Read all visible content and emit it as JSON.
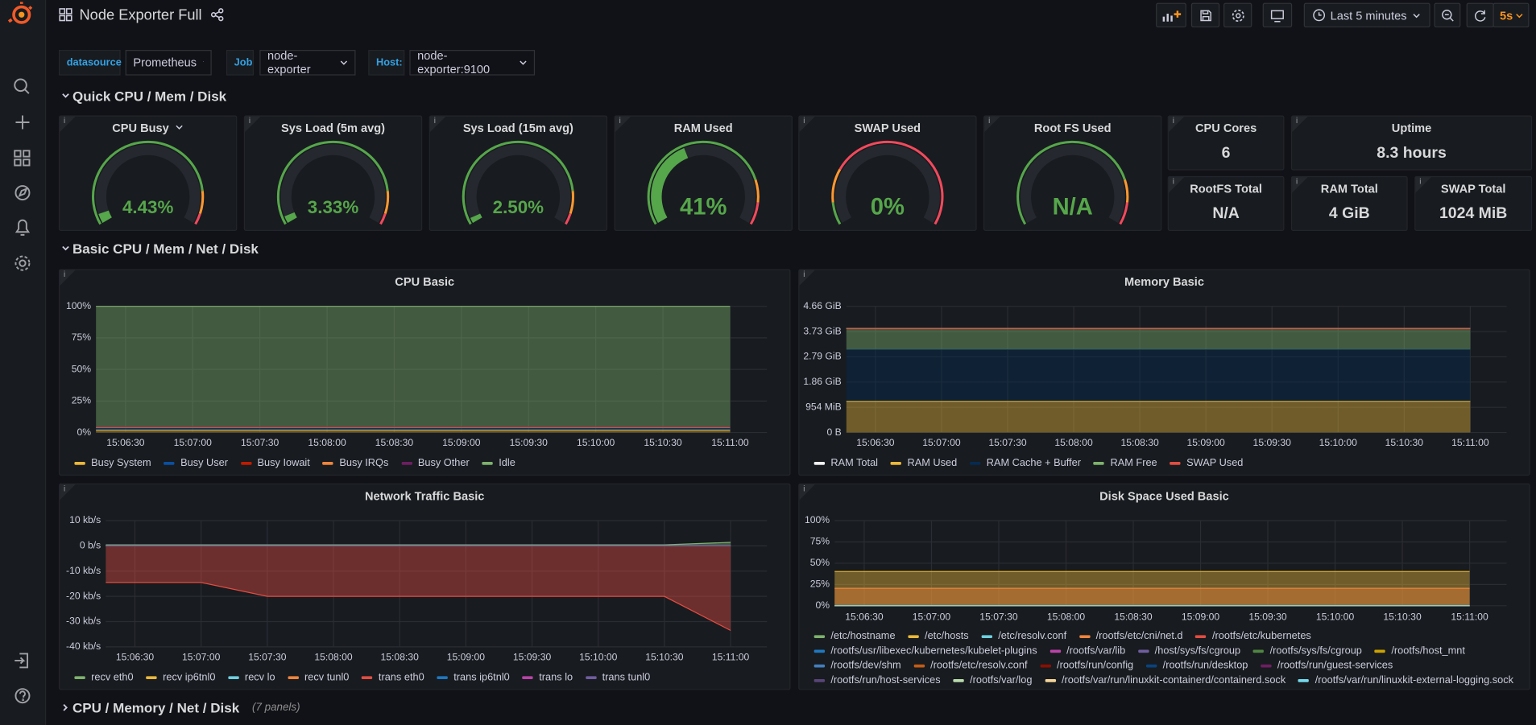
{
  "header": {
    "title": "Node Exporter Full",
    "time_range": "Last 5 minutes",
    "refresh": "5s"
  },
  "variables": [
    {
      "label": "datasource",
      "value": "Prometheus"
    },
    {
      "label": "Job",
      "value": "node-exporter"
    },
    {
      "label": "Host:",
      "value": "node-exporter:9100"
    }
  ],
  "rows": [
    {
      "title": "Quick CPU / Mem / Disk"
    },
    {
      "title": "Basic CPU / Mem / Net / Disk"
    },
    {
      "title": "CPU / Memory / Net / Disk",
      "note": "(7 panels)"
    }
  ],
  "gauges": [
    {
      "title": "CPU Busy",
      "value": 4.43,
      "value_label": "4.43%",
      "max": 100,
      "thresholds": [
        {
          "value": 0,
          "color": "#56A64B"
        },
        {
          "value": 85,
          "color": "#FF9830"
        },
        {
          "value": 95,
          "color": "#F2495C"
        }
      ]
    },
    {
      "title": "Sys Load (5m avg)",
      "value": 3.33,
      "value_label": "3.33%",
      "max": 100,
      "thresholds": [
        {
          "value": 0,
          "color": "#56A64B"
        },
        {
          "value": 85,
          "color": "#FF9830"
        },
        {
          "value": 95,
          "color": "#F2495C"
        }
      ]
    },
    {
      "title": "Sys Load (15m avg)",
      "value": 2.5,
      "value_label": "2.50%",
      "max": 100,
      "thresholds": [
        {
          "value": 0,
          "color": "#56A64B"
        },
        {
          "value": 85,
          "color": "#FF9830"
        },
        {
          "value": 95,
          "color": "#F2495C"
        }
      ]
    },
    {
      "title": "RAM Used",
      "value": 41,
      "value_label": "41%",
      "max": 100,
      "thresholds": [
        {
          "value": 0,
          "color": "#56A64B"
        },
        {
          "value": 80,
          "color": "#FF9830"
        },
        {
          "value": 90,
          "color": "#F2495C"
        }
      ]
    },
    {
      "title": "SWAP Used",
      "value": 0,
      "value_label": "0%",
      "max": 100,
      "thresholds": [
        {
          "value": 0,
          "color": "#56A64B"
        },
        {
          "value": 10,
          "color": "#FF9830"
        },
        {
          "value": 25,
          "color": "#F2495C"
        }
      ]
    },
    {
      "title": "Root FS Used",
      "value": null,
      "value_label": "N/A",
      "max": 100,
      "thresholds": [
        {
          "value": 0,
          "color": "#56A64B"
        },
        {
          "value": 80,
          "color": "#FF9830"
        },
        {
          "value": 90,
          "color": "#F2495C"
        }
      ]
    }
  ],
  "stats": [
    {
      "title": "CPU Cores",
      "value": "6"
    },
    {
      "title": "Uptime",
      "value": "8.3 hours"
    },
    {
      "title": "RootFS Total",
      "value": "N/A"
    },
    {
      "title": "RAM Total",
      "value": "4 GiB"
    },
    {
      "title": "SWAP Total",
      "value": "1024 MiB"
    }
  ],
  "charts": [
    {
      "type": "timeseries",
      "title": "CPU Basic",
      "stacked": true,
      "x": [
        null,
        "15:06:30",
        "15:07:00",
        "15:07:30",
        "15:08:00",
        "15:08:30",
        "15:09:00",
        "15:09:30",
        "15:10:00",
        "15:10:30",
        "15:11:00"
      ],
      "ylim": [
        0,
        100
      ],
      "yticks": [
        {
          "value": 0,
          "label": "0%"
        },
        {
          "value": 25,
          "label": "25%"
        },
        {
          "value": 50,
          "label": "50%"
        },
        {
          "value": 75,
          "label": "75%"
        },
        {
          "value": 100,
          "label": "100%"
        }
      ],
      "series": [
        {
          "name": "Busy System",
          "color": "#EAB839",
          "values": [
            2,
            2,
            2,
            2,
            2,
            2,
            2,
            2,
            2,
            2,
            2
          ]
        },
        {
          "name": "Busy User",
          "color": "#0A50A1",
          "values": [
            2,
            2,
            2,
            2,
            2,
            2,
            2,
            2,
            2,
            2,
            2
          ]
        },
        {
          "name": "Busy Iowait",
          "color": "#BF1B00",
          "values": [
            0,
            0,
            0,
            0,
            0,
            0,
            0,
            0,
            0,
            0,
            0
          ]
        },
        {
          "name": "Busy IRQs",
          "color": "#EF843C",
          "values": [
            0,
            0,
            0,
            0,
            0,
            0,
            0,
            0,
            0,
            0,
            0
          ]
        },
        {
          "name": "Busy Other",
          "color": "#6D1F62",
          "values": [
            0.4,
            0.4,
            0.4,
            0.4,
            0.4,
            0.4,
            0.4,
            0.4,
            0.4,
            0.4,
            0.4
          ]
        },
        {
          "name": "Idle",
          "color": "#7EB26D",
          "values": [
            95.6,
            95.6,
            95.6,
            95.6,
            95.6,
            95.6,
            95.6,
            95.6,
            95.6,
            95.6,
            95.6
          ]
        }
      ]
    },
    {
      "type": "timeseries",
      "title": "Memory Basic",
      "stacked": true,
      "x": [
        null,
        "15:06:30",
        "15:07:00",
        "15:07:30",
        "15:08:00",
        "15:08:30",
        "15:09:00",
        "15:09:30",
        "15:10:00",
        "15:10:30",
        "15:11:00"
      ],
      "ylim": [
        0,
        5000000000
      ],
      "yticks": [
        {
          "value": 0,
          "label": "0 B"
        },
        {
          "value": 1000000000,
          "label": "954 MiB"
        },
        {
          "value": 2000000000,
          "label": "1.86 GiB"
        },
        {
          "value": 3000000000,
          "label": "2.79 GiB"
        },
        {
          "value": 4000000000,
          "label": "3.73 GiB"
        },
        {
          "value": 5000000000,
          "label": "4.66 GiB"
        }
      ],
      "series": [
        {
          "name": "RAM Total",
          "color": "#F2F2F2",
          "stack": false,
          "values": [
            4120000000,
            4120000000,
            4120000000,
            4120000000,
            4120000000,
            4120000000,
            4120000000,
            4120000000,
            4120000000,
            4120000000,
            4120000000
          ]
        },
        {
          "name": "RAM Used",
          "color": "#EAB839",
          "values": [
            1240000000,
            1240000000,
            1240000000,
            1240000000,
            1240000000,
            1240000000,
            1240000000,
            1240000000,
            1240000000,
            1240000000,
            1240000000
          ]
        },
        {
          "name": "RAM Cache + Buffer",
          "color": "#052B51",
          "values": [
            2050000000,
            2050000000,
            2050000000,
            2050000000,
            2050000000,
            2050000000,
            2050000000,
            2050000000,
            2050000000,
            2050000000,
            2050000000
          ]
        },
        {
          "name": "RAM Free",
          "color": "#7EB26D",
          "values": [
            830000000,
            830000000,
            830000000,
            830000000,
            830000000,
            830000000,
            830000000,
            830000000,
            830000000,
            830000000,
            830000000
          ]
        },
        {
          "name": "SWAP Used",
          "color": "#E24D42",
          "values": [
            0,
            0,
            0,
            0,
            0,
            0,
            0,
            0,
            0,
            0,
            0
          ]
        }
      ]
    },
    {
      "type": "timeseries",
      "title": "Network Traffic Basic",
      "stacked": false,
      "x": [
        null,
        "15:06:30",
        "15:07:00",
        "15:07:30",
        "15:08:00",
        "15:08:30",
        "15:09:00",
        "15:09:30",
        "15:10:00",
        "15:10:30",
        "15:11:00"
      ],
      "ylim": [
        -40000,
        10000
      ],
      "yticks": [
        {
          "value": 10000,
          "label": "10 kb/s"
        },
        {
          "value": 0,
          "label": "0 b/s"
        },
        {
          "value": -10000,
          "label": "-10 kb/s"
        },
        {
          "value": -20000,
          "label": "-20 kb/s"
        },
        {
          "value": -30000,
          "label": "-30 kb/s"
        },
        {
          "value": -40000,
          "label": "-40 kb/s"
        }
      ],
      "series": [
        {
          "name": "recv eth0",
          "color": "#7EB26D",
          "values": [
            400,
            400,
            400,
            400,
            400,
            400,
            400,
            400,
            400,
            400,
            1400
          ]
        },
        {
          "name": "recv ip6tnl0",
          "color": "#EAB839",
          "values": [
            0,
            0,
            0,
            0,
            0,
            0,
            0,
            0,
            0,
            0,
            0
          ]
        },
        {
          "name": "recv lo",
          "color": "#6ED0E0",
          "values": [
            0,
            0,
            0,
            0,
            0,
            0,
            0,
            0,
            0,
            0,
            0
          ]
        },
        {
          "name": "recv tunl0",
          "color": "#EF843C",
          "values": [
            0,
            0,
            0,
            0,
            0,
            0,
            0,
            0,
            0,
            0,
            0
          ]
        },
        {
          "name": "trans eth0",
          "color": "#E24D42",
          "values": [
            -14500,
            -14500,
            -14500,
            -20000,
            -20000,
            -20000,
            -20000,
            -20000,
            -20000,
            -20000,
            -33500
          ]
        },
        {
          "name": "trans ip6tnl0",
          "color": "#1F78C1",
          "values": [
            0,
            0,
            0,
            0,
            0,
            0,
            0,
            0,
            0,
            0,
            0
          ]
        },
        {
          "name": "trans lo",
          "color": "#BA43A9",
          "values": [
            0,
            0,
            0,
            0,
            0,
            0,
            0,
            0,
            0,
            0,
            0
          ]
        },
        {
          "name": "trans tunl0",
          "color": "#705DA0",
          "values": [
            0,
            0,
            0,
            0,
            0,
            0,
            0,
            0,
            0,
            0,
            0
          ]
        }
      ]
    },
    {
      "type": "timeseries",
      "title": "Disk Space Used Basic",
      "stacked": false,
      "x": [
        null,
        "15:06:30",
        "15:07:00",
        "15:07:30",
        "15:08:00",
        "15:08:30",
        "15:09:00",
        "15:09:30",
        "15:10:00",
        "15:10:30",
        "15:11:00"
      ],
      "ylim": [
        0,
        100
      ],
      "yticks": [
        {
          "value": 0,
          "label": "0%"
        },
        {
          "value": 25,
          "label": "25%"
        },
        {
          "value": 50,
          "label": "50%"
        },
        {
          "value": 75,
          "label": "75%"
        },
        {
          "value": 100,
          "label": "100%"
        }
      ],
      "series": [
        {
          "name": "/etc/hostname",
          "color": "#7EB26D",
          "values": [
            0,
            0,
            0,
            0,
            0,
            0,
            0,
            0,
            0,
            0,
            0
          ]
        },
        {
          "name": "/etc/hosts",
          "color": "#EAB839",
          "values": [
            40.3,
            40.3,
            40.3,
            40.3,
            40.3,
            40.3,
            40.3,
            40.3,
            40.3,
            40.3,
            40.3
          ]
        },
        {
          "name": "/etc/resolv.conf",
          "color": "#6ED0E0",
          "values": [
            0,
            0,
            0,
            0,
            0,
            0,
            0,
            0,
            0,
            0,
            0
          ]
        },
        {
          "name": "/rootfs/etc/cni/net.d",
          "color": "#EF843C",
          "values": [
            20.5,
            20.5,
            20.5,
            20.5,
            20.5,
            20.5,
            20.5,
            20.5,
            20.5,
            20.5,
            20.5
          ]
        },
        {
          "name": "/rootfs/etc/kubernetes",
          "color": "#E24D42",
          "values": [
            0,
            0,
            0,
            0,
            0,
            0,
            0,
            0,
            0,
            0,
            0
          ]
        },
        {
          "name": "/rootfs/usr/libexec/kubernetes/kubelet-plugins",
          "color": "#1F78C1",
          "values": [
            0,
            0,
            0,
            0,
            0,
            0,
            0,
            0,
            0,
            0,
            0
          ]
        },
        {
          "name": "/rootfs/var/lib",
          "color": "#BA43A9",
          "values": [
            0,
            0,
            0,
            0,
            0,
            0,
            0,
            0,
            0,
            0,
            0
          ]
        },
        {
          "name": "/host/sys/fs/cgroup",
          "color": "#705DA0",
          "values": [
            0,
            0,
            0,
            0,
            0,
            0,
            0,
            0,
            0,
            0,
            0
          ]
        },
        {
          "name": "/rootfs/sys/fs/cgroup",
          "color": "#508642",
          "values": [
            0,
            0,
            0,
            0,
            0,
            0,
            0,
            0,
            0,
            0,
            0
          ]
        },
        {
          "name": "/rootfs/host_mnt",
          "color": "#CCA300",
          "values": [
            0,
            0,
            0,
            0,
            0,
            0,
            0,
            0,
            0,
            0,
            0
          ]
        },
        {
          "name": "/rootfs/dev/shm",
          "color": "#447EBC",
          "values": [
            0,
            0,
            0,
            0,
            0,
            0,
            0,
            0,
            0,
            0,
            0
          ]
        },
        {
          "name": "/rootfs/etc/resolv.conf",
          "color": "#C15C17",
          "values": [
            0,
            0,
            0,
            0,
            0,
            0,
            0,
            0,
            0,
            0,
            0
          ]
        },
        {
          "name": "/rootfs/run/config",
          "color": "#890F02",
          "values": [
            0,
            0,
            0,
            0,
            0,
            0,
            0,
            0,
            0,
            0,
            0
          ]
        },
        {
          "name": "/rootfs/run/desktop",
          "color": "#0A437C",
          "values": [
            0,
            0,
            0,
            0,
            0,
            0,
            0,
            0,
            0,
            0,
            0
          ]
        },
        {
          "name": "/rootfs/run/guest-services",
          "color": "#6D1F62",
          "values": [
            0,
            0,
            0,
            0,
            0,
            0,
            0,
            0,
            0,
            0,
            0
          ]
        },
        {
          "name": "/rootfs/run/host-services",
          "color": "#584477",
          "values": [
            0,
            0,
            0,
            0,
            0,
            0,
            0,
            0,
            0,
            0,
            0
          ]
        },
        {
          "name": "/rootfs/var/log",
          "color": "#B7DBAB",
          "values": [
            0,
            0,
            0,
            0,
            0,
            0,
            0,
            0,
            0,
            0,
            0
          ]
        },
        {
          "name": "/rootfs/var/run/linuxkit-containerd/containerd.sock",
          "color": "#F4D598",
          "values": [
            0,
            0,
            0,
            0,
            0,
            0,
            0,
            0,
            0,
            0,
            0
          ]
        },
        {
          "name": "/rootfs/var/run/linuxkit-external-logging.sock",
          "color": "#70DBED",
          "values": [
            0,
            0,
            0,
            0,
            0,
            0,
            0,
            0,
            0,
            0,
            0
          ]
        }
      ]
    }
  ]
}
